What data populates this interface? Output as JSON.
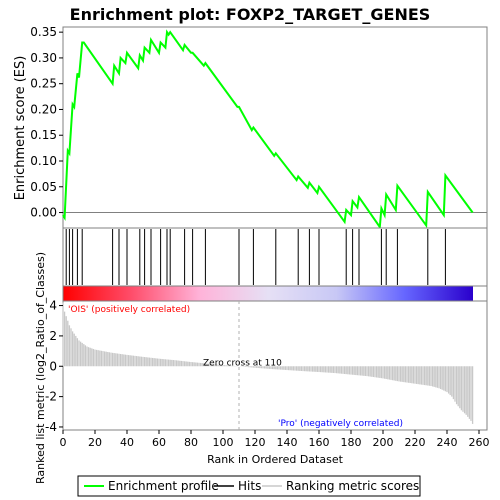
{
  "chart_data": {
    "type": "line",
    "title": "Enrichment plot: FOXP2_TARGET_GENES",
    "es_panel": {
      "ylabel": "Enrichment score (ES)",
      "ylim": [
        -0.03,
        0.36
      ],
      "yticks": [
        0.0,
        0.05,
        0.1,
        0.15,
        0.2,
        0.25,
        0.3,
        0.35
      ],
      "ytick_labels": [
        "0.00",
        "0.05",
        "0.10",
        "0.15",
        "0.20",
        "0.25",
        "0.30",
        "0.35"
      ],
      "series": [
        {
          "name": "Enrichment profile",
          "color": "#00ff00",
          "x": [
            0,
            1,
            3,
            4,
            6,
            7,
            9,
            10,
            12,
            13,
            31,
            32,
            35,
            36,
            39,
            40,
            47,
            48,
            50,
            51,
            54,
            55,
            60,
            61,
            64,
            65,
            66,
            67,
            75,
            76,
            80,
            81,
            88,
            89,
            109,
            110,
            118,
            119,
            132,
            133,
            146,
            147,
            153,
            154,
            159,
            160,
            176,
            177,
            180,
            181,
            184,
            185,
            198,
            199,
            201,
            202,
            208,
            209,
            227,
            228,
            238,
            239,
            256
          ],
          "y": [
            -0.005,
            -0.01,
            0.12,
            0.115,
            0.21,
            0.205,
            0.27,
            0.262,
            0.33,
            0.33,
            0.25,
            0.285,
            0.27,
            0.3,
            0.29,
            0.31,
            0.28,
            0.305,
            0.295,
            0.32,
            0.31,
            0.335,
            0.31,
            0.33,
            0.32,
            0.35,
            0.345,
            0.35,
            0.315,
            0.325,
            0.31,
            0.31,
            0.285,
            0.29,
            0.205,
            0.205,
            0.16,
            0.165,
            0.11,
            0.115,
            0.063,
            0.07,
            0.048,
            0.058,
            0.038,
            0.05,
            -0.018,
            0.005,
            -0.005,
            0.022,
            0.01,
            0.03,
            -0.028,
            0.008,
            -0.005,
            0.035,
            0.005,
            0.052,
            -0.025,
            0.04,
            -0.005,
            0.072,
            0.0
          ]
        }
      ]
    },
    "hits": [
      2,
      4,
      6,
      9,
      12,
      31,
      35,
      40,
      48,
      51,
      55,
      61,
      65,
      67,
      76,
      81,
      89,
      110,
      119,
      133,
      147,
      154,
      160,
      177,
      181,
      185,
      199,
      202,
      209,
      228,
      239
    ],
    "colorbar": {
      "gradient": [
        "#ff0000",
        "#ff4d6a",
        "#ffb3d9",
        "#e6e0f5",
        "#c8c8f5",
        "#6666ff",
        "#2a00cc"
      ],
      "label_positive": "'OIS' (positively correlated)",
      "label_negative": "'Pro' (negatively correlated)"
    },
    "metric_panel": {
      "ylabel": "Ranked list metric (log2_Ratio_of_Classes)",
      "ylim": [
        -4.2,
        4.3
      ],
      "yticks": [
        4,
        2,
        0,
        -2,
        -4
      ],
      "ytick_labels": [
        "4",
        "2",
        "0",
        "-2",
        "-4"
      ],
      "zero_cross_label": "Zero cross at 110",
      "zero_cross_x": 110,
      "metric_profile": {
        "x": [
          0,
          1,
          2,
          4,
          6,
          10,
          15,
          20,
          30,
          40,
          50,
          60,
          70,
          80,
          90,
          100,
          110,
          120,
          130,
          140,
          150,
          160,
          170,
          180,
          190,
          200,
          210,
          220,
          230,
          235,
          240,
          243,
          246,
          249,
          252,
          255,
          256
        ],
        "y": [
          4.2,
          3.6,
          3.3,
          2.7,
          2.3,
          1.7,
          1.3,
          1.1,
          0.9,
          0.75,
          0.62,
          0.5,
          0.4,
          0.28,
          0.18,
          0.08,
          0.0,
          -0.1,
          -0.18,
          -0.25,
          -0.32,
          -0.38,
          -0.45,
          -0.55,
          -0.65,
          -0.8,
          -1.0,
          -1.15,
          -1.3,
          -1.45,
          -1.7,
          -2.0,
          -2.5,
          -2.9,
          -3.2,
          -3.6,
          -3.8
        ]
      }
    },
    "xaxis": {
      "xlabel": "Rank in Ordered Dataset",
      "xlim": [
        0,
        265
      ],
      "xticks": [
        0,
        20,
        40,
        60,
        80,
        100,
        120,
        140,
        160,
        180,
        200,
        220,
        240,
        260
      ],
      "xtick_labels": [
        "0",
        "20",
        "40",
        "60",
        "80",
        "100",
        "120",
        "140",
        "160",
        "180",
        "200",
        "220",
        "240",
        "260"
      ]
    },
    "legend": {
      "placement": "bottom",
      "entries": [
        {
          "label": "Enrichment profile",
          "color": "#00ff00"
        },
        {
          "label": "Hits",
          "color": "#000000"
        },
        {
          "label": "Ranking metric scores",
          "color": "#c8c8c8"
        }
      ]
    }
  }
}
